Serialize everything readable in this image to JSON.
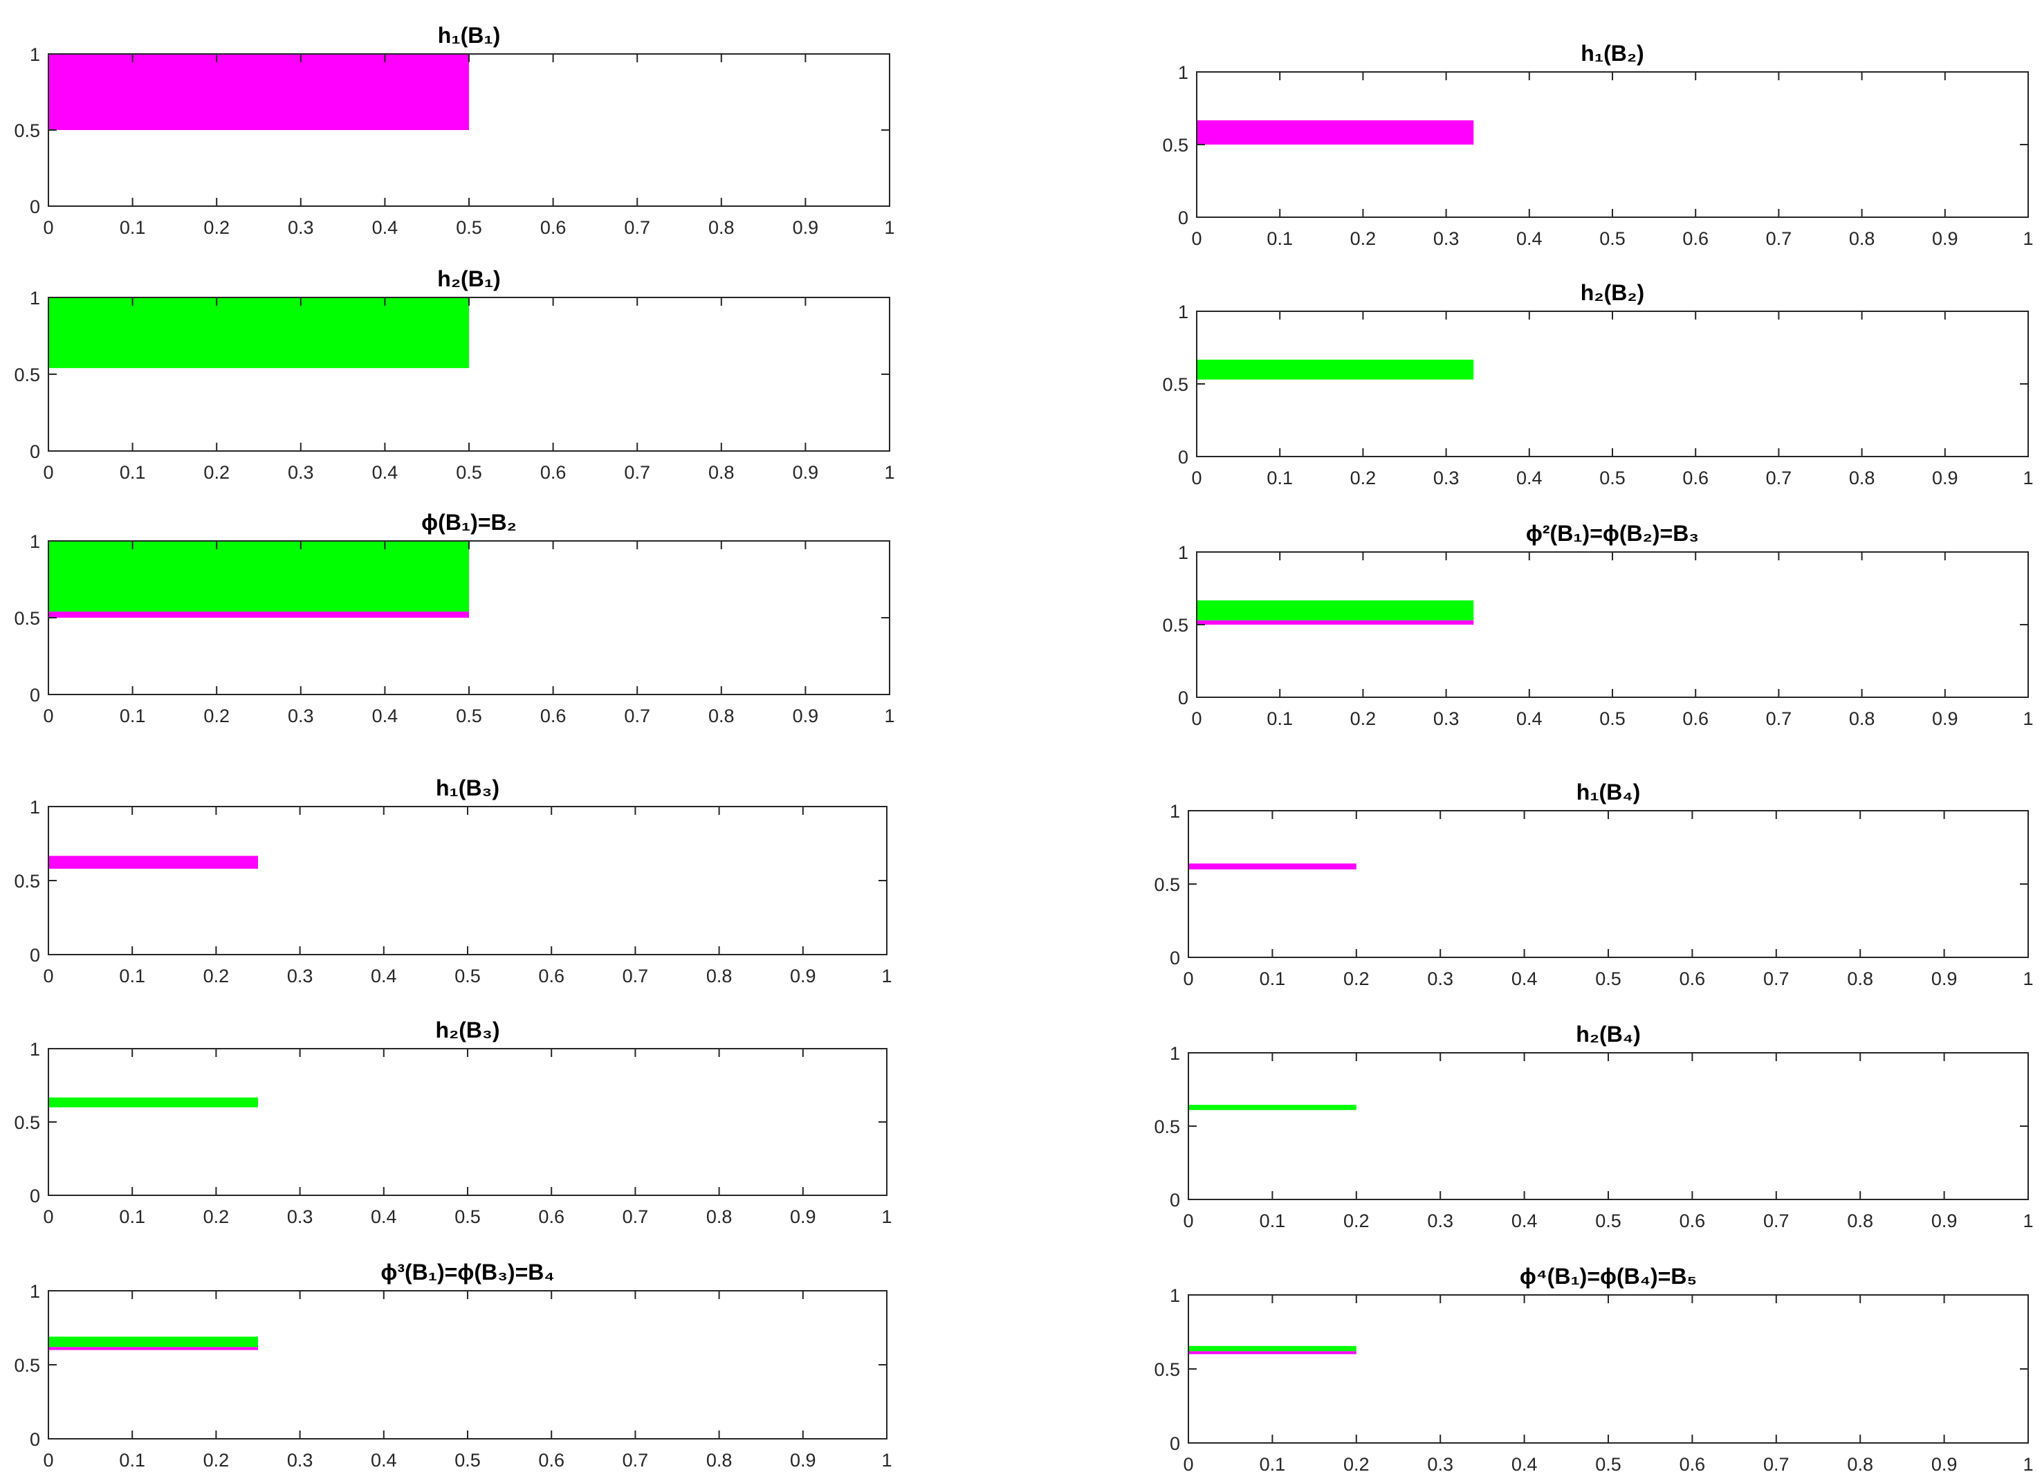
{
  "colors": {
    "h1": "#ff00ff",
    "h2": "#00ff00",
    "axis": "#262626"
  },
  "chart_data": [
    {
      "type": "area",
      "title": "h₁(B₁)",
      "xlim": [
        0,
        1
      ],
      "ylim": [
        0,
        1
      ],
      "xticks": [
        "0",
        "0.1",
        "0.2",
        "0.3",
        "0.4",
        "0.5",
        "0.6",
        "0.7",
        "0.8",
        "0.9",
        "1"
      ],
      "yticks": [
        "0",
        "0.5",
        "1"
      ],
      "bands": [
        {
          "color_key": "h1",
          "x": [
            0,
            0.5
          ],
          "y": [
            0.5,
            1.0
          ]
        }
      ]
    },
    {
      "type": "area",
      "title": "h₁(B₂)",
      "xlim": [
        0,
        1
      ],
      "ylim": [
        0,
        1
      ],
      "xticks": [
        "0",
        "0.1",
        "0.2",
        "0.3",
        "0.4",
        "0.5",
        "0.6",
        "0.7",
        "0.8",
        "0.9",
        "1"
      ],
      "yticks": [
        "0",
        "0.5",
        "1"
      ],
      "bands": [
        {
          "color_key": "h1",
          "x": [
            0,
            0.333
          ],
          "y": [
            0.5,
            0.667
          ]
        }
      ]
    },
    {
      "type": "area",
      "title": "h₂(B₁)",
      "xlim": [
        0,
        1
      ],
      "ylim": [
        0,
        1
      ],
      "xticks": [
        "0",
        "0.1",
        "0.2",
        "0.3",
        "0.4",
        "0.5",
        "0.6",
        "0.7",
        "0.8",
        "0.9",
        "1"
      ],
      "yticks": [
        "0",
        "0.5",
        "1"
      ],
      "bands": [
        {
          "color_key": "h2",
          "x": [
            0,
            0.5
          ],
          "y": [
            0.54,
            1.0
          ]
        }
      ]
    },
    {
      "type": "area",
      "title": "h₂(B₂)",
      "xlim": [
        0,
        1
      ],
      "ylim": [
        0,
        1
      ],
      "xticks": [
        "0",
        "0.1",
        "0.2",
        "0.3",
        "0.4",
        "0.5",
        "0.6",
        "0.7",
        "0.8",
        "0.9",
        "1"
      ],
      "yticks": [
        "0",
        "0.5",
        "1"
      ],
      "bands": [
        {
          "color_key": "h2",
          "x": [
            0,
            0.333
          ],
          "y": [
            0.53,
            0.667
          ]
        }
      ]
    },
    {
      "type": "area",
      "title": "ϕ(B₁)=B₂",
      "xlim": [
        0,
        1
      ],
      "ylim": [
        0,
        1
      ],
      "xticks": [
        "0",
        "0.1",
        "0.2",
        "0.3",
        "0.4",
        "0.5",
        "0.6",
        "0.7",
        "0.8",
        "0.9",
        "1"
      ],
      "yticks": [
        "0",
        "0.5",
        "1"
      ],
      "bands": [
        {
          "color_key": "h1",
          "x": [
            0,
            0.5
          ],
          "y": [
            0.5,
            0.54
          ]
        },
        {
          "color_key": "h2",
          "x": [
            0,
            0.5
          ],
          "y": [
            0.54,
            1.0
          ]
        }
      ]
    },
    {
      "type": "area",
      "title": "ϕ²(B₁)=ϕ(B₂)=B₃",
      "xlim": [
        0,
        1
      ],
      "ylim": [
        0,
        1
      ],
      "xticks": [
        "0",
        "0.1",
        "0.2",
        "0.3",
        "0.4",
        "0.5",
        "0.6",
        "0.7",
        "0.8",
        "0.9",
        "1"
      ],
      "yticks": [
        "0",
        "0.5",
        "1"
      ],
      "bands": [
        {
          "color_key": "h1",
          "x": [
            0,
            0.333
          ],
          "y": [
            0.5,
            0.53
          ]
        },
        {
          "color_key": "h2",
          "x": [
            0,
            0.333
          ],
          "y": [
            0.53,
            0.667
          ]
        }
      ]
    },
    {
      "type": "area",
      "title": "h₁(B₃)",
      "xlim": [
        0,
        1
      ],
      "ylim": [
        0,
        1
      ],
      "xticks": [
        "0",
        "0.1",
        "0.2",
        "0.3",
        "0.4",
        "0.5",
        "0.6",
        "0.7",
        "0.8",
        "0.9",
        "1"
      ],
      "yticks": [
        "0",
        "0.5",
        "1"
      ],
      "bands": [
        {
          "color_key": "h1",
          "x": [
            0,
            0.25
          ],
          "y": [
            0.58,
            0.667
          ]
        }
      ]
    },
    {
      "type": "area",
      "title": "h₁(B₄)",
      "xlim": [
        0,
        1
      ],
      "ylim": [
        0,
        1
      ],
      "xticks": [
        "0",
        "0.1",
        "0.2",
        "0.3",
        "0.4",
        "0.5",
        "0.6",
        "0.7",
        "0.8",
        "0.9",
        "1"
      ],
      "yticks": [
        "0",
        "0.5",
        "1"
      ],
      "bands": [
        {
          "color_key": "h1",
          "x": [
            0,
            0.2
          ],
          "y": [
            0.6,
            0.64
          ]
        }
      ]
    },
    {
      "type": "area",
      "title": "h₂(B₃)",
      "xlim": [
        0,
        1
      ],
      "ylim": [
        0,
        1
      ],
      "xticks": [
        "0",
        "0.1",
        "0.2",
        "0.3",
        "0.4",
        "0.5",
        "0.6",
        "0.7",
        "0.8",
        "0.9",
        "1"
      ],
      "yticks": [
        "0",
        "0.5",
        "1"
      ],
      "bands": [
        {
          "color_key": "h2",
          "x": [
            0,
            0.25
          ],
          "y": [
            0.6,
            0.667
          ]
        }
      ]
    },
    {
      "type": "area",
      "title": "h₂(B₄)",
      "xlim": [
        0,
        1
      ],
      "ylim": [
        0,
        1
      ],
      "xticks": [
        "0",
        "0.1",
        "0.2",
        "0.3",
        "0.4",
        "0.5",
        "0.6",
        "0.7",
        "0.8",
        "0.9",
        "1"
      ],
      "yticks": [
        "0",
        "0.5",
        "1"
      ],
      "bands": [
        {
          "color_key": "h2",
          "x": [
            0,
            0.2
          ],
          "y": [
            0.61,
            0.645
          ]
        }
      ]
    },
    {
      "type": "area",
      "title": "ϕ³(B₁)=ϕ(B₃)=B₄",
      "xlim": [
        0,
        1
      ],
      "ylim": [
        0,
        1
      ],
      "xticks": [
        "0",
        "0.1",
        "0.2",
        "0.3",
        "0.4",
        "0.5",
        "0.6",
        "0.7",
        "0.8",
        "0.9",
        "1"
      ],
      "yticks": [
        "0",
        "0.5",
        "1"
      ],
      "bands": [
        {
          "color_key": "h1",
          "x": [
            0,
            0.25
          ],
          "y": [
            0.6,
            0.62
          ]
        },
        {
          "color_key": "h2",
          "x": [
            0,
            0.25
          ],
          "y": [
            0.62,
            0.69
          ]
        }
      ]
    },
    {
      "type": "area",
      "title": "ϕ⁴(B₁)=ϕ(B₄)=B₅",
      "xlim": [
        0,
        1
      ],
      "ylim": [
        0,
        1
      ],
      "xticks": [
        "0",
        "0.1",
        "0.2",
        "0.3",
        "0.4",
        "0.5",
        "0.6",
        "0.7",
        "0.8",
        "0.9",
        "1"
      ],
      "yticks": [
        "0",
        "0.5",
        "1"
      ],
      "bands": [
        {
          "color_key": "h1",
          "x": [
            0,
            0.2
          ],
          "y": [
            0.6,
            0.62
          ]
        },
        {
          "color_key": "h2",
          "x": [
            0,
            0.2
          ],
          "y": [
            0.62,
            0.655
          ]
        }
      ]
    }
  ]
}
